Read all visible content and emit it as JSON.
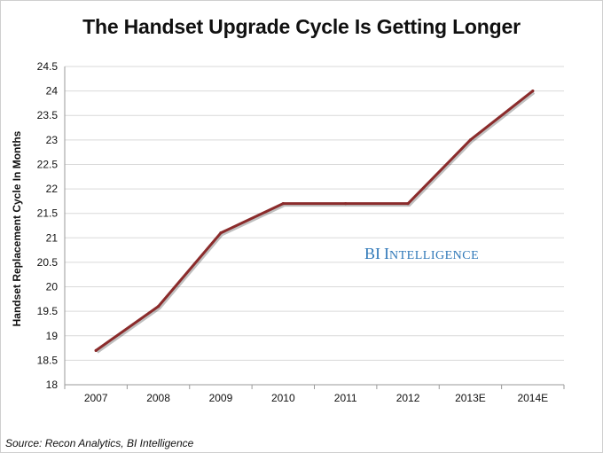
{
  "chart_data": {
    "type": "line",
    "title": "The Handset Upgrade Cycle Is Getting Longer",
    "ylabel": "Handset Replacement Cycle In Months",
    "xlabel": "",
    "categories": [
      "2007",
      "2008",
      "2009",
      "2010",
      "2011",
      "2012",
      "2013E",
      "2014E"
    ],
    "series": [
      {
        "values": [
          18.7,
          19.6,
          21.1,
          21.7,
          21.7,
          21.7,
          23.0,
          24.0
        ]
      }
    ],
    "ylim": [
      18,
      24.5
    ],
    "yticks": [
      "18",
      "18.5",
      "19",
      "19.5",
      "20",
      "20.5",
      "21",
      "21.5",
      "22",
      "22.5",
      "23",
      "23.5",
      "24",
      "24.5"
    ],
    "grid": "horizontal",
    "legend": "none",
    "line_color": "#8b2b2b",
    "grid_color": "#d9d9d9"
  },
  "watermark": {
    "first": "BI",
    "second": "Intelligence",
    "color": "#2f78b8"
  },
  "source": "Source: Recon Analytics, BI Intelligence"
}
